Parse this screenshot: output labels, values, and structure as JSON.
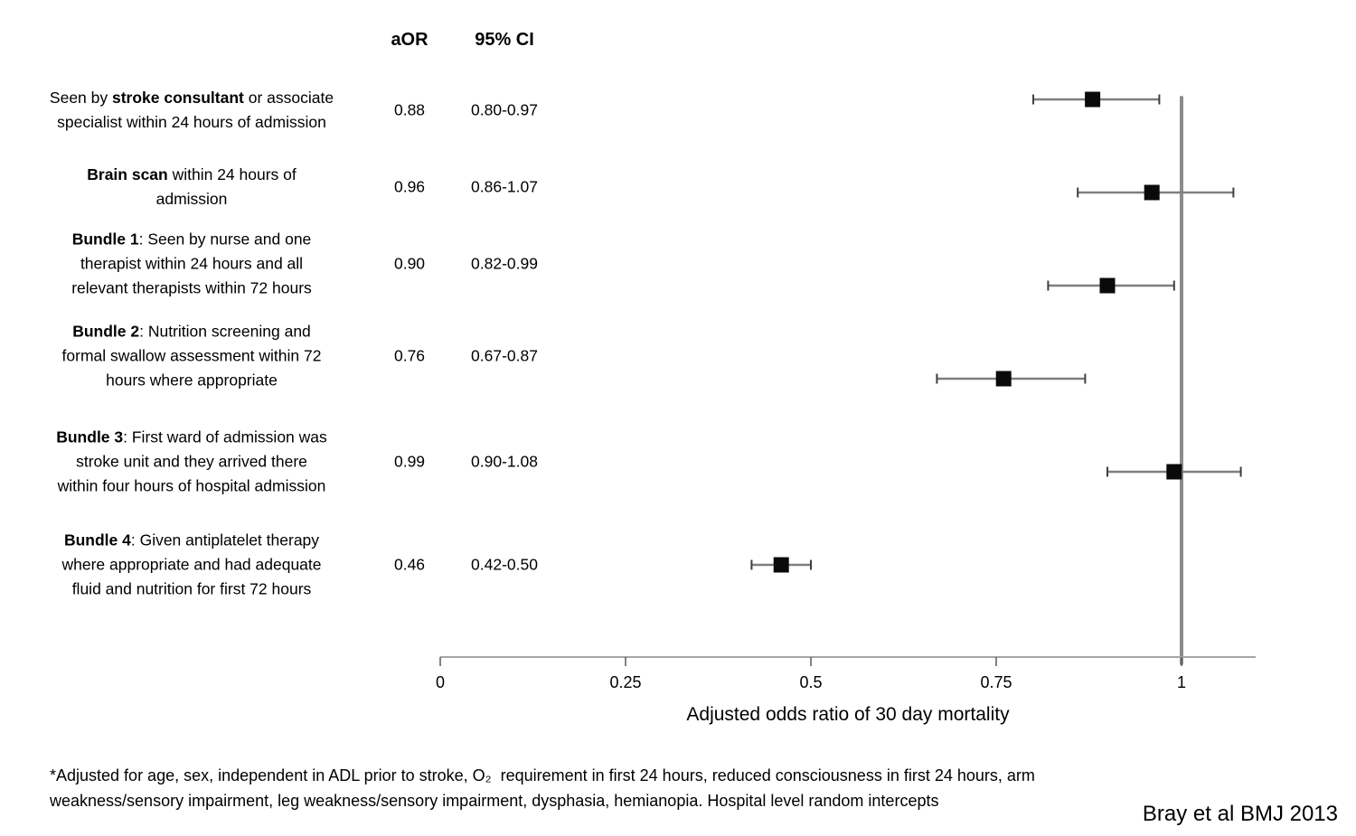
{
  "columns": {
    "aor_label": "aOR",
    "ci_label": "95% CI"
  },
  "chart_data": {
    "type": "forest",
    "title": "",
    "xlabel": "Adjusted odds ratio of 30 day mortality",
    "xlim": [
      0,
      1.1
    ],
    "x_ticks": [
      0,
      0.25,
      0.5,
      0.75,
      1
    ],
    "x_tick_labels": [
      "0",
      "0.25",
      "0.5",
      "0.75",
      "1"
    ],
    "reference_line": 1.0,
    "grid": false,
    "legend": false,
    "rows": [
      {
        "label": "Seen by **stroke consultant** or associate\nspecialist within 24 hours of admission",
        "aor": "0.88",
        "ci": "0.80-0.97",
        "estimate": 0.88,
        "ci_low": 0.8,
        "ci_high": 0.97
      },
      {
        "label": "**Brain scan** within 24 hours of\nadmission",
        "aor": "0.96",
        "ci": "0.86-1.07",
        "estimate": 0.96,
        "ci_low": 0.86,
        "ci_high": 1.07
      },
      {
        "label": "**Bundle 1**: Seen by nurse and one\ntherapist within 24 hours and all\nrelevant therapists within 72 hours",
        "aor": "0.90",
        "ci": "0.82-0.99",
        "estimate": 0.9,
        "ci_low": 0.82,
        "ci_high": 0.99
      },
      {
        "label": "**Bundle 2**: Nutrition screening and\nformal swallow assessment within 72\nhours where appropriate",
        "aor": "0.76",
        "ci": "0.67-0.87",
        "estimate": 0.76,
        "ci_low": 0.67,
        "ci_high": 0.87
      },
      {
        "label": "**Bundle 3**: First ward of admission was\nstroke unit and they arrived there\nwithin four hours of hospital admission",
        "aor": "0.99",
        "ci": "0.90-1.08",
        "estimate": 0.99,
        "ci_low": 0.9,
        "ci_high": 1.08
      },
      {
        "label": "**Bundle 4**: Given antiplatelet therapy\nwhere appropriate and had adequate\nfluid and nutrition for first 72 hours",
        "aor": "0.46",
        "ci": "0.42-0.50",
        "estimate": 0.46,
        "ci_low": 0.42,
        "ci_high": 0.5
      }
    ]
  },
  "footnote": {
    "text": "*Adjusted for age, sex, independent in ADL prior to stroke, O₂  requirement in first 24 hours, reduced consciousness in first 24 hours, arm\nweakness/sensory impairment, leg weakness/sensory impairment, dysphasia, hemianopia. Hospital level random intercepts"
  },
  "citation": "Bray et al BMJ 2013",
  "colors": {
    "marker": "#0a0a0a",
    "error_bar": "#7f7f7f",
    "error_cap": "#404040",
    "reference_line": "#8c8c8c",
    "axis_line": "#a6a6a6",
    "tick": "#595959",
    "text": "#000000"
  }
}
